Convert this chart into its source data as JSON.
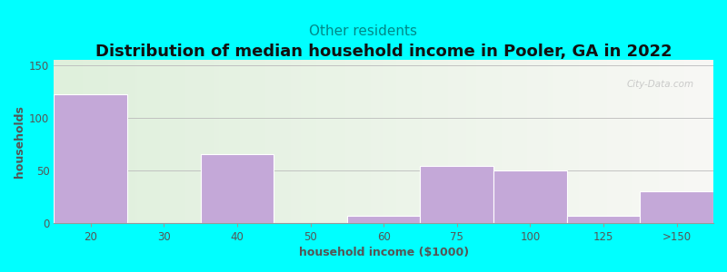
{
  "title": "Distribution of median household income in Pooler, GA in 2022",
  "subtitle": "Other residents",
  "xlabel": "household income ($1000)",
  "ylabel": "households",
  "background_color": "#00FFFF",
  "plot_bg_color_left": "#dff0dc",
  "plot_bg_color_right": "#f8f8f5",
  "bar_color": "#c4a8d8",
  "bar_edge_color": "#ffffff",
  "categories": [
    "20",
    "30",
    "40",
    "50",
    "60",
    "75",
    "100",
    "125",
    ">150"
  ],
  "values": [
    122,
    0,
    65,
    0,
    7,
    54,
    50,
    7,
    30
  ],
  "ylim": [
    0,
    155
  ],
  "yticks": [
    0,
    50,
    100,
    150
  ],
  "title_fontsize": 13,
  "subtitle_fontsize": 11,
  "subtitle_color": "#008888",
  "axis_label_fontsize": 9,
  "tick_fontsize": 8.5,
  "tick_color": "#555555",
  "watermark": "City-Data.com"
}
